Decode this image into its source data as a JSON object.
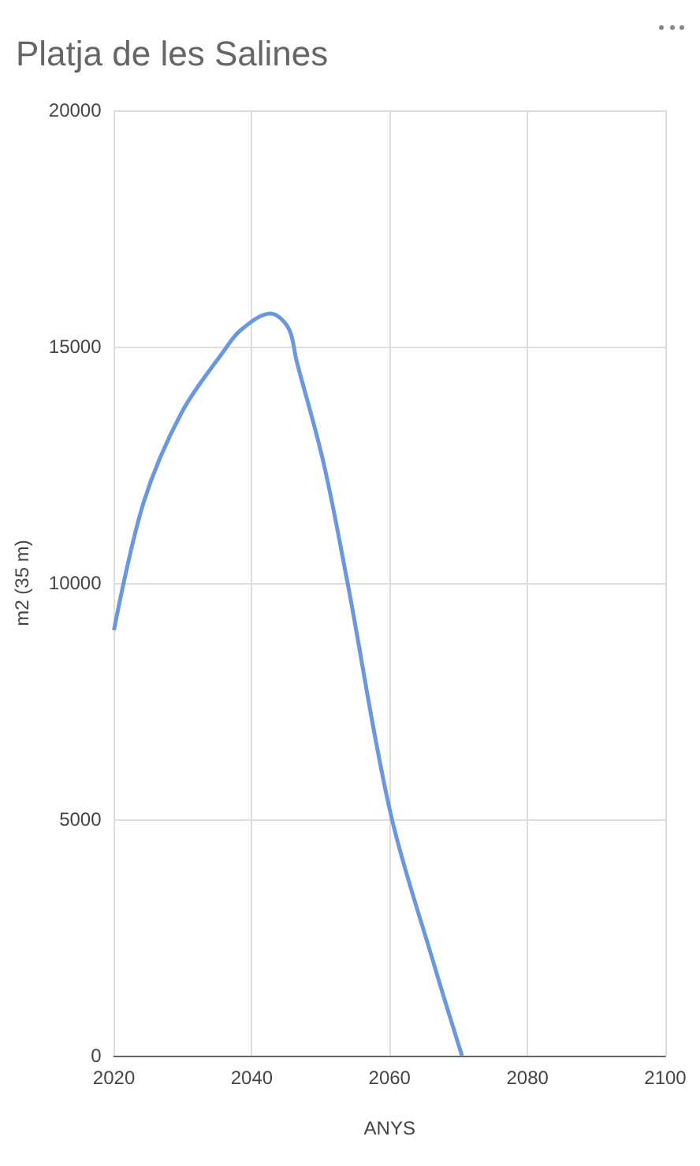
{
  "chart_data": {
    "type": "line",
    "title": "Platja de les Salines",
    "xlabel": "ANYS",
    "ylabel": "m2 (35 m)",
    "x": [
      2020,
      2024.3,
      2029.8,
      2035.9,
      2038.4,
      2042.7,
      2045.3,
      2046.5,
      2050.4,
      2053.9,
      2060.1,
      2066.4,
      2070.5
    ],
    "series": [
      {
        "color": "#6a98e0",
        "values": [
          9000,
          11700,
          13600,
          14900,
          15350,
          15700,
          15400,
          14700,
          12550,
          10000,
          5150,
          1950,
          0
        ]
      }
    ],
    "xlim": [
      2020,
      2100
    ],
    "xticks": [
      2020,
      2040,
      2060,
      2080,
      2100
    ],
    "ylim": [
      0,
      20000
    ],
    "yticks": [
      0,
      5000,
      10000,
      15000,
      20000
    ],
    "grid": true,
    "marker": "none"
  }
}
